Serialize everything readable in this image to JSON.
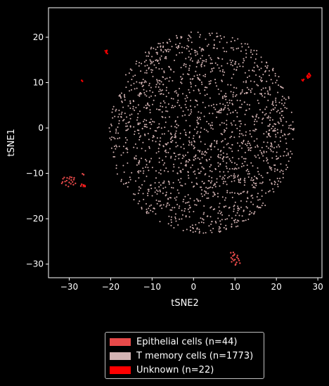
{
  "chart_data": {
    "type": "scatter",
    "xlabel": "tSNE2",
    "ylabel": "tSNE1",
    "xlim": [
      -35,
      31
    ],
    "ylim": [
      -33,
      26.5
    ],
    "xticks": [
      -30,
      -20,
      -10,
      0,
      10,
      20,
      30
    ],
    "yticks": [
      -30,
      -20,
      -10,
      0,
      10,
      20
    ],
    "grid": false,
    "legend_position": "bottom-center",
    "background": "#000000",
    "series": [
      {
        "name": "Epithelial cells (n=44)",
        "color": "#e84a4a",
        "points": [
          [
            -31.5,
            -11.2
          ],
          [
            -31.0,
            -11.8
          ],
          [
            -30.5,
            -11.0
          ],
          [
            -30.0,
            -12.0
          ],
          [
            -29.5,
            -11.5
          ],
          [
            -29.0,
            -12.5
          ],
          [
            -28.8,
            -11.0
          ],
          [
            -30.8,
            -12.6
          ],
          [
            -31.8,
            -12.2
          ],
          [
            -29.8,
            -10.8
          ],
          [
            -29.2,
            -11.9
          ],
          [
            -30.2,
            -12.9
          ],
          [
            -28.5,
            -12.2
          ],
          [
            -31.2,
            -10.9
          ],
          [
            -30.6,
            -11.6
          ],
          [
            -29.6,
            -12.3
          ],
          [
            -28.9,
            -11.4
          ],
          [
            -31.6,
            -11.9
          ],
          [
            -30.0,
            -11.2
          ],
          [
            -29.4,
            -10.9
          ],
          [
            -27.2,
            -12.8
          ],
          [
            -26.5,
            -12.6
          ],
          [
            -27.0,
            -12.4
          ],
          [
            -26.2,
            -12.9
          ],
          [
            -26.5,
            -10.3
          ],
          [
            -26.8,
            -10.1
          ],
          [
            9.0,
            -27.5
          ],
          [
            9.5,
            -28.2
          ],
          [
            10.0,
            -29.0
          ],
          [
            10.5,
            -28.5
          ],
          [
            9.2,
            -29.5
          ],
          [
            10.2,
            -30.0
          ],
          [
            11.0,
            -29.2
          ],
          [
            9.8,
            -28.0
          ],
          [
            10.8,
            -28.8
          ],
          [
            9.4,
            -28.9
          ],
          [
            10.4,
            -29.6
          ],
          [
            9.9,
            -27.8
          ],
          [
            11.2,
            -29.8
          ],
          [
            9.1,
            -28.6
          ],
          [
            10.6,
            -28.1
          ],
          [
            9.7,
            -29.2
          ],
          [
            10.1,
            -30.2
          ],
          [
            9.6,
            -27.4
          ]
        ]
      },
      {
        "name": "T memory cells (n=1773)",
        "color": "#d4b4b4",
        "n": 1773,
        "core_center": [
          2,
          -1
        ],
        "core_radius": 20,
        "extent": "x -30 to 28, y -27 to 24"
      },
      {
        "name": "Unknown (n=22)",
        "color": "#ff0000",
        "points": [
          [
            -21.0,
            16.8
          ],
          [
            -21.3,
            17.0
          ],
          [
            -20.8,
            16.4
          ],
          [
            -21.1,
            16.6
          ],
          [
            -20.9,
            17.1
          ],
          [
            -27.0,
            10.5
          ],
          [
            -26.8,
            10.3
          ],
          [
            27.5,
            11.6
          ],
          [
            27.8,
            11.9
          ],
          [
            28.0,
            11.2
          ],
          [
            27.6,
            11.0
          ],
          [
            28.2,
            11.5
          ],
          [
            27.9,
            12.0
          ],
          [
            28.1,
            11.7
          ],
          [
            27.4,
            11.3
          ],
          [
            27.7,
            11.4
          ],
          [
            26.2,
            10.6
          ],
          [
            26.4,
            10.4
          ],
          [
            26.6,
            10.7
          ],
          [
            -26.2,
            -12.7
          ],
          [
            -26.6,
            -12.9
          ],
          [
            -26.9,
            -12.5
          ]
        ]
      }
    ]
  },
  "legend": {
    "items": [
      {
        "label": "Epithelial cells (n=44)",
        "color": "#e84a4a"
      },
      {
        "label": "T memory cells (n=1773)",
        "color": "#d4b4b4"
      },
      {
        "label": "Unknown (n=22)",
        "color": "#ff0000"
      }
    ]
  }
}
